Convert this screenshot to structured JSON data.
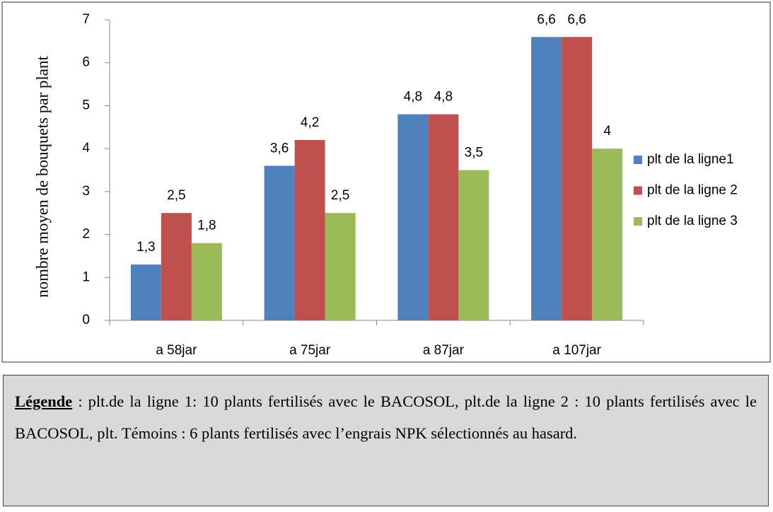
{
  "chart_data": {
    "type": "bar",
    "y_label": "nombre moyen de bouquets par plant",
    "categories": [
      "a 58jar",
      "a 75jar",
      "a 87jar",
      "a 107jar"
    ],
    "series": [
      {
        "name": "plt de la ligne1",
        "color": "#4f81bd",
        "values": [
          1.3,
          3.6,
          4.8,
          6.6
        ],
        "value_labels": [
          "1,3",
          "3,6",
          "4,8",
          "6,6"
        ]
      },
      {
        "name": "plt de la ligne 2",
        "color": "#c0504d",
        "values": [
          2.5,
          4.2,
          4.8,
          6.6
        ],
        "value_labels": [
          "2,5",
          "4,2",
          "4,8",
          "6,6"
        ]
      },
      {
        "name": "plt de la ligne 3",
        "color": "#9bbb59",
        "values": [
          1.8,
          2.5,
          3.5,
          4
        ],
        "value_labels": [
          "1,8",
          "2,5",
          "3,5",
          "4"
        ]
      }
    ],
    "ylim": [
      0,
      7
    ],
    "yticks": [
      0,
      1,
      2,
      3,
      4,
      5,
      6,
      7
    ],
    "legend": "right"
  },
  "caption": {
    "label": "Légende",
    "text": " : plt.de la ligne 1: 10 plants fertilisés avec le BACOSOL, plt.de la ligne 2 : 10 plants fertilisés avec le BACOSOL, plt. Témoins : 6 plants fertilisés avec l’engrais NPK sélectionnés au hasard."
  }
}
